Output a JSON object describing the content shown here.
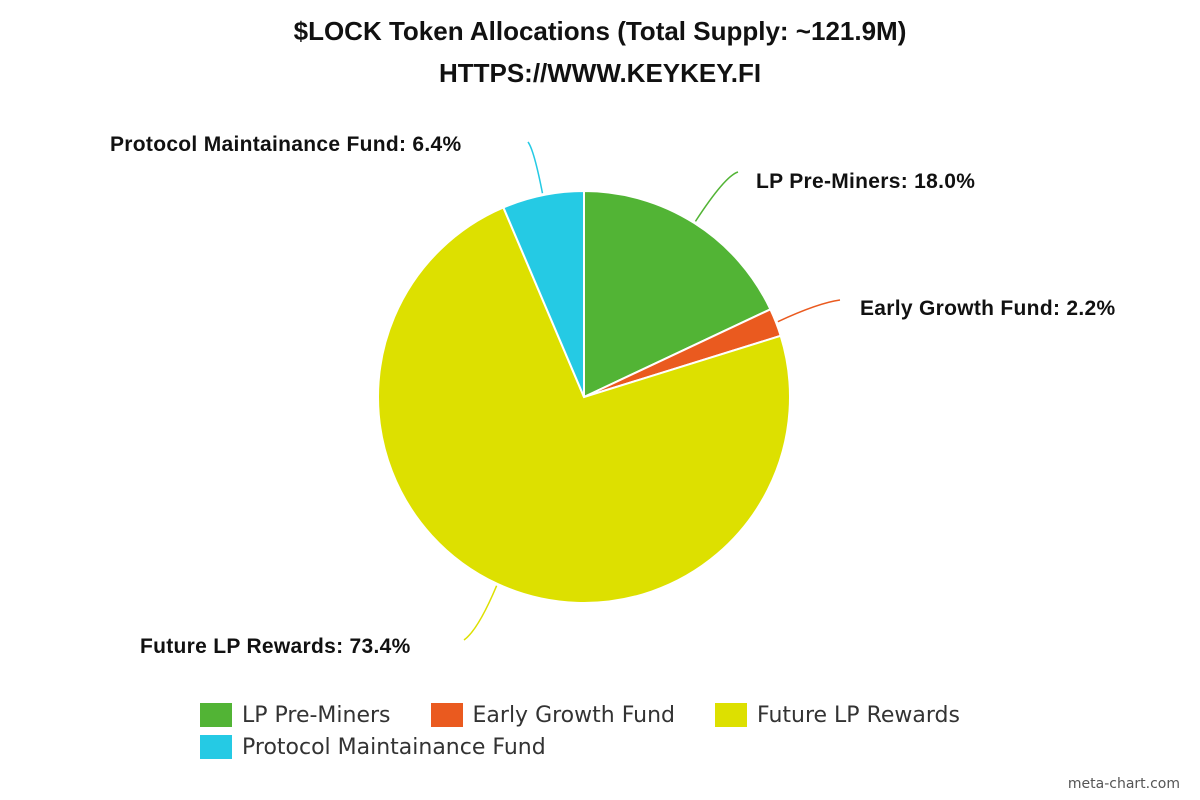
{
  "chart_data": {
    "type": "pie",
    "title": "$LOCK Token Allocations (Total Supply: ~121.9M)",
    "subtitle": "HTTPS://WWW.KEYKEY.FI",
    "slices": [
      {
        "name": "LP Pre-Miners",
        "value": 18.0,
        "label": "LP Pre-Miners: 18.0%",
        "color": "#52b435"
      },
      {
        "name": "Early Growth Fund",
        "value": 2.2,
        "label": "Early Growth Fund: 2.2%",
        "color": "#ea5a1f"
      },
      {
        "name": "Future LP Rewards",
        "value": 73.4,
        "label": "Future LP Rewards: 73.4%",
        "color": "#dde000"
      },
      {
        "name": "Protocol Maintainance Fund",
        "value": 6.4,
        "label": "Protocol Maintainance Fund: 6.4%",
        "color": "#25cae4"
      }
    ],
    "legend": {
      "position": "bottom",
      "entries": [
        "LP Pre-Miners",
        "Early Growth Fund",
        "Future LP Rewards",
        "Protocol Maintainance Fund"
      ]
    }
  },
  "watermark": "meta-chart.com"
}
